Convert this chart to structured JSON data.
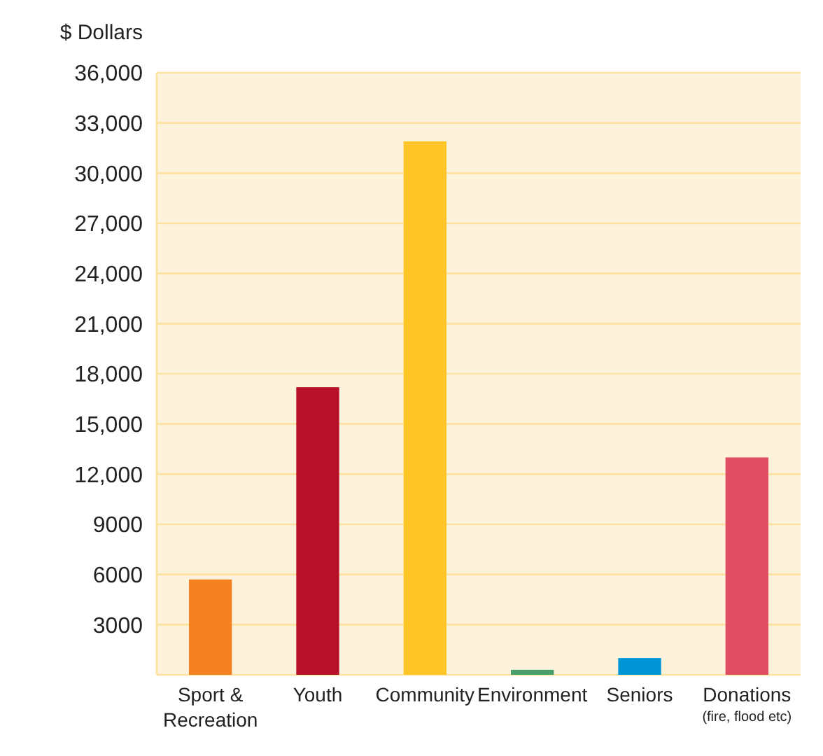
{
  "chart_data": {
    "type": "bar",
    "ylabel": "$ Dollars",
    "categories": [
      "Sport & Recreation",
      "Youth",
      "Community",
      "Environment",
      "Seniors",
      "Donations (fire, flood etc)"
    ],
    "values": [
      5700,
      17200,
      31900,
      300,
      1000,
      13000
    ],
    "colors": [
      "#f58220",
      "#b8122a",
      "#fdc526",
      "#4a9e6b",
      "#0096d6",
      "#e04e64"
    ],
    "ylim": [
      0,
      36000
    ],
    "yticks": [
      3000,
      6000,
      9000,
      {
        "value": 12000,
        "label": "12,000"
      },
      {
        "value": 15000,
        "label": "15,000"
      },
      {
        "value": 18000,
        "label": "18,000"
      },
      {
        "value": 21000,
        "label": "21,000"
      },
      {
        "value": 24000,
        "label": "24,000"
      },
      {
        "value": 27000,
        "label": "27,000"
      },
      {
        "value": 30000,
        "label": "30,000"
      },
      {
        "value": 33000,
        "label": "33,000"
      },
      {
        "value": 36000,
        "label": "36,000"
      }
    ],
    "grid": "y"
  }
}
